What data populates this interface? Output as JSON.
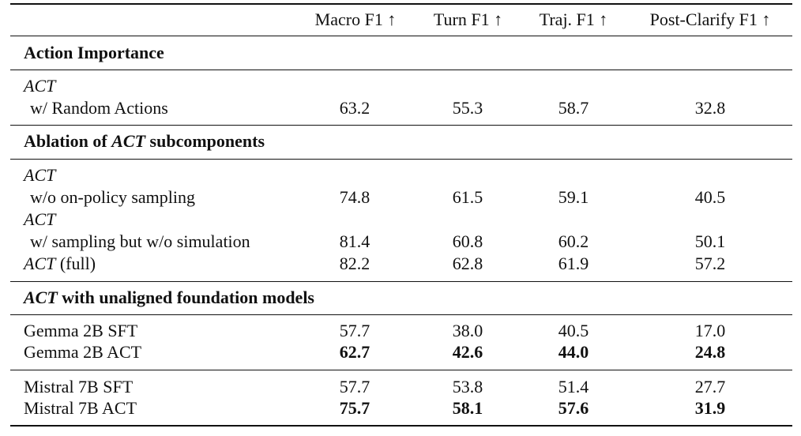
{
  "header": {
    "arrow": "↑",
    "columns": [
      "Macro F1",
      "Turn F1",
      "Traj. F1",
      "Post-Clarify F1"
    ]
  },
  "sections": {
    "action_importance": {
      "title": "Action Importance"
    },
    "ablation": {
      "title_pre": "Ablation of ",
      "title_em": "ACT",
      "title_post": " subcomponents"
    },
    "unaligned": {
      "title_em": "ACT",
      "title_post": " with unaligned foundation models"
    }
  },
  "rows": {
    "random": {
      "name_em": "ACT",
      "name_sub": "w/ Random Actions",
      "values": [
        "63.2",
        "55.3",
        "58.7",
        "32.8"
      ]
    },
    "onpolicy": {
      "name_em": "ACT",
      "name_sub": "w/o on-policy sampling",
      "values": [
        "74.8",
        "61.5",
        "59.1",
        "40.5"
      ]
    },
    "nosim": {
      "name_em": "ACT",
      "name_sub": "w/ sampling but w/o simulation",
      "values": [
        "81.4",
        "60.8",
        "60.2",
        "50.1"
      ]
    },
    "full": {
      "name_em": "ACT",
      "name_post": " (full)",
      "values": [
        "82.2",
        "62.8",
        "61.9",
        "57.2"
      ]
    },
    "gemma_sft": {
      "name": "Gemma 2B SFT",
      "values": [
        "57.7",
        "38.0",
        "40.5",
        "17.0"
      ]
    },
    "gemma_act": {
      "name": "Gemma 2B ACT",
      "values": [
        "62.7",
        "42.6",
        "44.0",
        "24.8"
      ]
    },
    "mistral_sft": {
      "name": "Mistral 7B SFT",
      "values": [
        "57.7",
        "53.8",
        "51.4",
        "27.7"
      ]
    },
    "mistral_act": {
      "name": "Mistral 7B ACT",
      "values": [
        "75.7",
        "58.1",
        "57.6",
        "31.9"
      ]
    }
  }
}
